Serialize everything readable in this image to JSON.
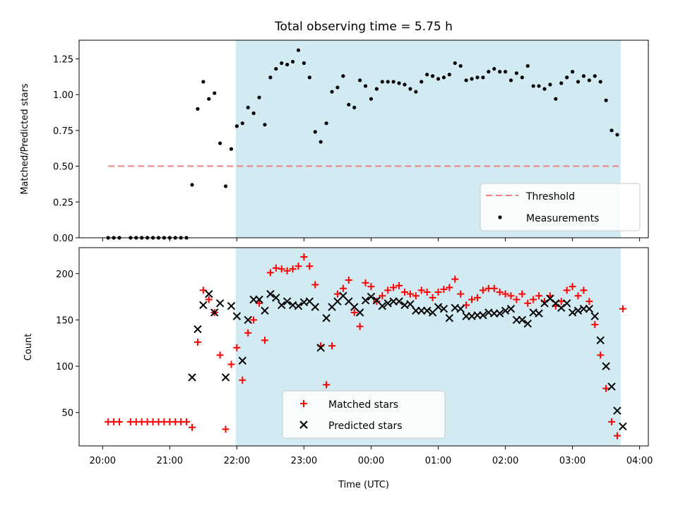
{
  "chart_data": [
    {
      "type": "scatter",
      "title": "Total observing time = 5.75 h",
      "ylabel": "Matched/Predicted stars",
      "ylim": [
        0,
        1.38
      ],
      "yticks": [
        {
          "value": 0.0,
          "label": "0.00"
        },
        {
          "value": 0.25,
          "label": "0.25"
        },
        {
          "value": 0.5,
          "label": "0.50"
        },
        {
          "value": 0.75,
          "label": "0.75"
        },
        {
          "value": 1.0,
          "label": "1.00"
        },
        {
          "value": 1.25,
          "label": "1.25"
        }
      ],
      "observing_window": {
        "start": "21:59",
        "end": "03:43",
        "color": "#add8e6"
      },
      "threshold": {
        "name": "Threshold",
        "value": 0.5,
        "x_from": "20:05",
        "x_to": "03:43",
        "color": "#f08080"
      },
      "legend": {
        "position": "lower right",
        "entries": [
          "Threshold",
          "Measurements"
        ]
      },
      "series": [
        {
          "name": "Measurements",
          "color": "#000000",
          "marker": "dot",
          "x": [
            "20:05",
            "20:10",
            "20:15",
            "20:20",
            "20:25",
            "20:30",
            "20:35",
            "20:40",
            "20:45",
            "20:50",
            "20:55",
            "21:00",
            "21:05",
            "21:10",
            "21:15",
            "21:20",
            "21:25",
            "21:30",
            "21:35",
            "21:40",
            "21:45",
            "21:50",
            "21:55",
            "22:00",
            "22:05",
            "22:10",
            "22:15",
            "22:20",
            "22:25",
            "22:30",
            "22:35",
            "22:40",
            "22:45",
            "22:50",
            "22:55",
            "23:00",
            "23:05",
            "23:10",
            "23:15",
            "23:20",
            "23:25",
            "23:30",
            "23:35",
            "23:40",
            "23:45",
            "23:50",
            "23:55",
            "00:00",
            "00:05",
            "00:10",
            "00:15",
            "00:20",
            "00:25",
            "00:30",
            "00:35",
            "00:40",
            "00:45",
            "00:50",
            "00:55",
            "01:00",
            "01:05",
            "01:10",
            "01:15",
            "01:20",
            "01:25",
            "01:30",
            "01:35",
            "01:40",
            "01:45",
            "01:50",
            "01:55",
            "02:00",
            "02:05",
            "02:10",
            "02:15",
            "02:20",
            "02:25",
            "02:30",
            "02:35",
            "02:40",
            "02:45",
            "02:50",
            "02:55",
            "03:00",
            "03:05",
            "03:10",
            "03:15",
            "03:20",
            "03:25",
            "03:30",
            "03:35",
            "03:40"
          ],
          "y": [
            0,
            0,
            0,
            null,
            0,
            0,
            0,
            0,
            0,
            0,
            0,
            0,
            0,
            0,
            0,
            0.37,
            0.9,
            1.09,
            0.97,
            1.01,
            0.66,
            0.36,
            0.62,
            0.78,
            0.8,
            0.91,
            0.87,
            0.98,
            0.79,
            1.12,
            1.18,
            1.22,
            1.21,
            1.23,
            1.31,
            1.22,
            1.12,
            0.74,
            0.67,
            0.8,
            1.02,
            1.05,
            1.13,
            0.93,
            0.91,
            1.1,
            1.06,
            0.97,
            1.04,
            1.09,
            1.09,
            1.09,
            1.08,
            1.07,
            1.04,
            1.02,
            1.09,
            1.14,
            1.13,
            1.11,
            1.12,
            1.14,
            1.22,
            1.2,
            1.1,
            1.11,
            1.12,
            1.12,
            1.16,
            1.18,
            1.16,
            1.16,
            1.1,
            1.15,
            1.12,
            1.2,
            1.06,
            1.06,
            1.04,
            1.07,
            0.97,
            1.08,
            1.12,
            1.16,
            1.09,
            1.13,
            1.1,
            1.13,
            1.09,
            0.96,
            0.75,
            0.72
          ]
        }
      ]
    },
    {
      "type": "scatter",
      "xlabel": "Time (UTC)",
      "ylabel": "Count",
      "ylim": [
        14,
        228
      ],
      "yticks": [
        {
          "value": 50,
          "label": "50"
        },
        {
          "value": 100,
          "label": "100"
        },
        {
          "value": 150,
          "label": "150"
        },
        {
          "value": 200,
          "label": "200"
        }
      ],
      "xticks": [
        {
          "value": "20:00",
          "label": "20:00"
        },
        {
          "value": "21:00",
          "label": "21:00"
        },
        {
          "value": "22:00",
          "label": "22:00"
        },
        {
          "value": "23:00",
          "label": "23:00"
        },
        {
          "value": "24:00",
          "label": "00:00"
        },
        {
          "value": "25:00",
          "label": "01:00"
        },
        {
          "value": "26:00",
          "label": "02:00"
        },
        {
          "value": "27:00",
          "label": "03:00"
        },
        {
          "value": "28:00",
          "label": "04:00"
        }
      ],
      "observing_window": {
        "start": "21:59",
        "end": "03:43",
        "color": "#add8e6"
      },
      "legend": {
        "position": "lower center",
        "entries": [
          "Matched stars",
          "Predicted stars"
        ]
      },
      "series": [
        {
          "name": "Matched stars",
          "color": "#ff0000",
          "marker": "plus",
          "x": [
            "20:05",
            "20:10",
            "20:15",
            "20:25",
            "20:30",
            "20:35",
            "20:40",
            "20:45",
            "20:50",
            "20:55",
            "21:00",
            "21:05",
            "21:10",
            "21:15",
            "21:20",
            "21:25",
            "21:30",
            "21:35",
            "21:40",
            "21:45",
            "21:50",
            "21:55",
            "22:00",
            "22:05",
            "22:10",
            "22:15",
            "22:20",
            "22:25",
            "22:30",
            "22:35",
            "22:40",
            "22:45",
            "22:50",
            "22:55",
            "23:00",
            "23:05",
            "23:10",
            "23:15",
            "23:20",
            "23:25",
            "23:30",
            "23:35",
            "23:40",
            "23:45",
            "23:50",
            "23:55",
            "00:00",
            "00:05",
            "00:10",
            "00:15",
            "00:20",
            "00:25",
            "00:30",
            "00:35",
            "00:40",
            "00:45",
            "00:50",
            "00:55",
            "01:00",
            "01:05",
            "01:10",
            "01:15",
            "01:20",
            "01:25",
            "01:30",
            "01:35",
            "01:40",
            "01:45",
            "01:50",
            "01:55",
            "02:00",
            "02:05",
            "02:10",
            "02:15",
            "02:20",
            "02:25",
            "02:30",
            "02:35",
            "02:40",
            "02:45",
            "02:50",
            "02:55",
            "03:00",
            "03:05",
            "03:10",
            "03:15",
            "03:20",
            "03:25",
            "03:30",
            "03:35",
            "03:40",
            "03:45"
          ],
          "y": [
            40,
            40,
            40,
            40,
            40,
            40,
            40,
            40,
            40,
            40,
            40,
            40,
            40,
            40,
            34,
            126,
            182,
            172,
            158,
            112,
            32,
            102,
            120,
            85,
            136,
            150,
            168,
            128,
            201,
            206,
            205,
            203,
            205,
            208,
            218,
            208,
            188,
            122,
            80,
            122,
            178,
            184,
            193,
            158,
            143,
            190,
            186,
            170,
            176,
            182,
            185,
            187,
            180,
            178,
            176,
            182,
            180,
            174,
            180,
            183,
            185,
            194,
            178,
            166,
            172,
            174,
            182,
            184,
            184,
            180,
            178,
            176,
            172,
            178,
            168,
            172,
            176,
            170,
            176,
            165,
            170,
            182,
            186,
            176,
            182,
            170,
            145,
            112,
            76,
            40,
            25,
            162
          ]
        },
        {
          "name": "Predicted stars",
          "color": "#000000",
          "marker": "x",
          "x": [
            "21:20",
            "21:25",
            "21:30",
            "21:35",
            "21:40",
            "21:45",
            "21:50",
            "21:55",
            "22:00",
            "22:05",
            "22:10",
            "22:15",
            "22:20",
            "22:25",
            "22:30",
            "22:35",
            "22:40",
            "22:45",
            "22:50",
            "22:55",
            "23:00",
            "23:05",
            "23:10",
            "23:15",
            "23:20",
            "23:25",
            "23:30",
            "23:35",
            "23:40",
            "23:45",
            "23:50",
            "23:55",
            "00:00",
            "00:05",
            "00:10",
            "00:15",
            "00:20",
            "00:25",
            "00:30",
            "00:35",
            "00:40",
            "00:45",
            "00:50",
            "00:55",
            "01:00",
            "01:05",
            "01:10",
            "01:15",
            "01:20",
            "01:25",
            "01:30",
            "01:35",
            "01:40",
            "01:45",
            "01:50",
            "01:55",
            "02:00",
            "02:05",
            "02:10",
            "02:15",
            "02:20",
            "02:25",
            "02:30",
            "02:35",
            "02:40",
            "02:45",
            "02:50",
            "02:55",
            "03:00",
            "03:05",
            "03:10",
            "03:15",
            "03:20",
            "03:25",
            "03:30",
            "03:35",
            "03:40",
            "03:45"
          ],
          "y": [
            88,
            140,
            166,
            178,
            158,
            168,
            88,
            165,
            154,
            106,
            150,
            172,
            172,
            160,
            178,
            174,
            166,
            170,
            166,
            165,
            169,
            170,
            164,
            120,
            152,
            164,
            170,
            176,
            170,
            164,
            158,
            171,
            175,
            171,
            165,
            168,
            170,
            170,
            166,
            167,
            160,
            160,
            160,
            158,
            164,
            162,
            152,
            163,
            162,
            154,
            154,
            155,
            155,
            158,
            157,
            157,
            160,
            162,
            150,
            150,
            146,
            158,
            157,
            168,
            173,
            168,
            163,
            168,
            158,
            160,
            162,
            162,
            154,
            128,
            100,
            78,
            52,
            35
          ]
        }
      ]
    }
  ]
}
